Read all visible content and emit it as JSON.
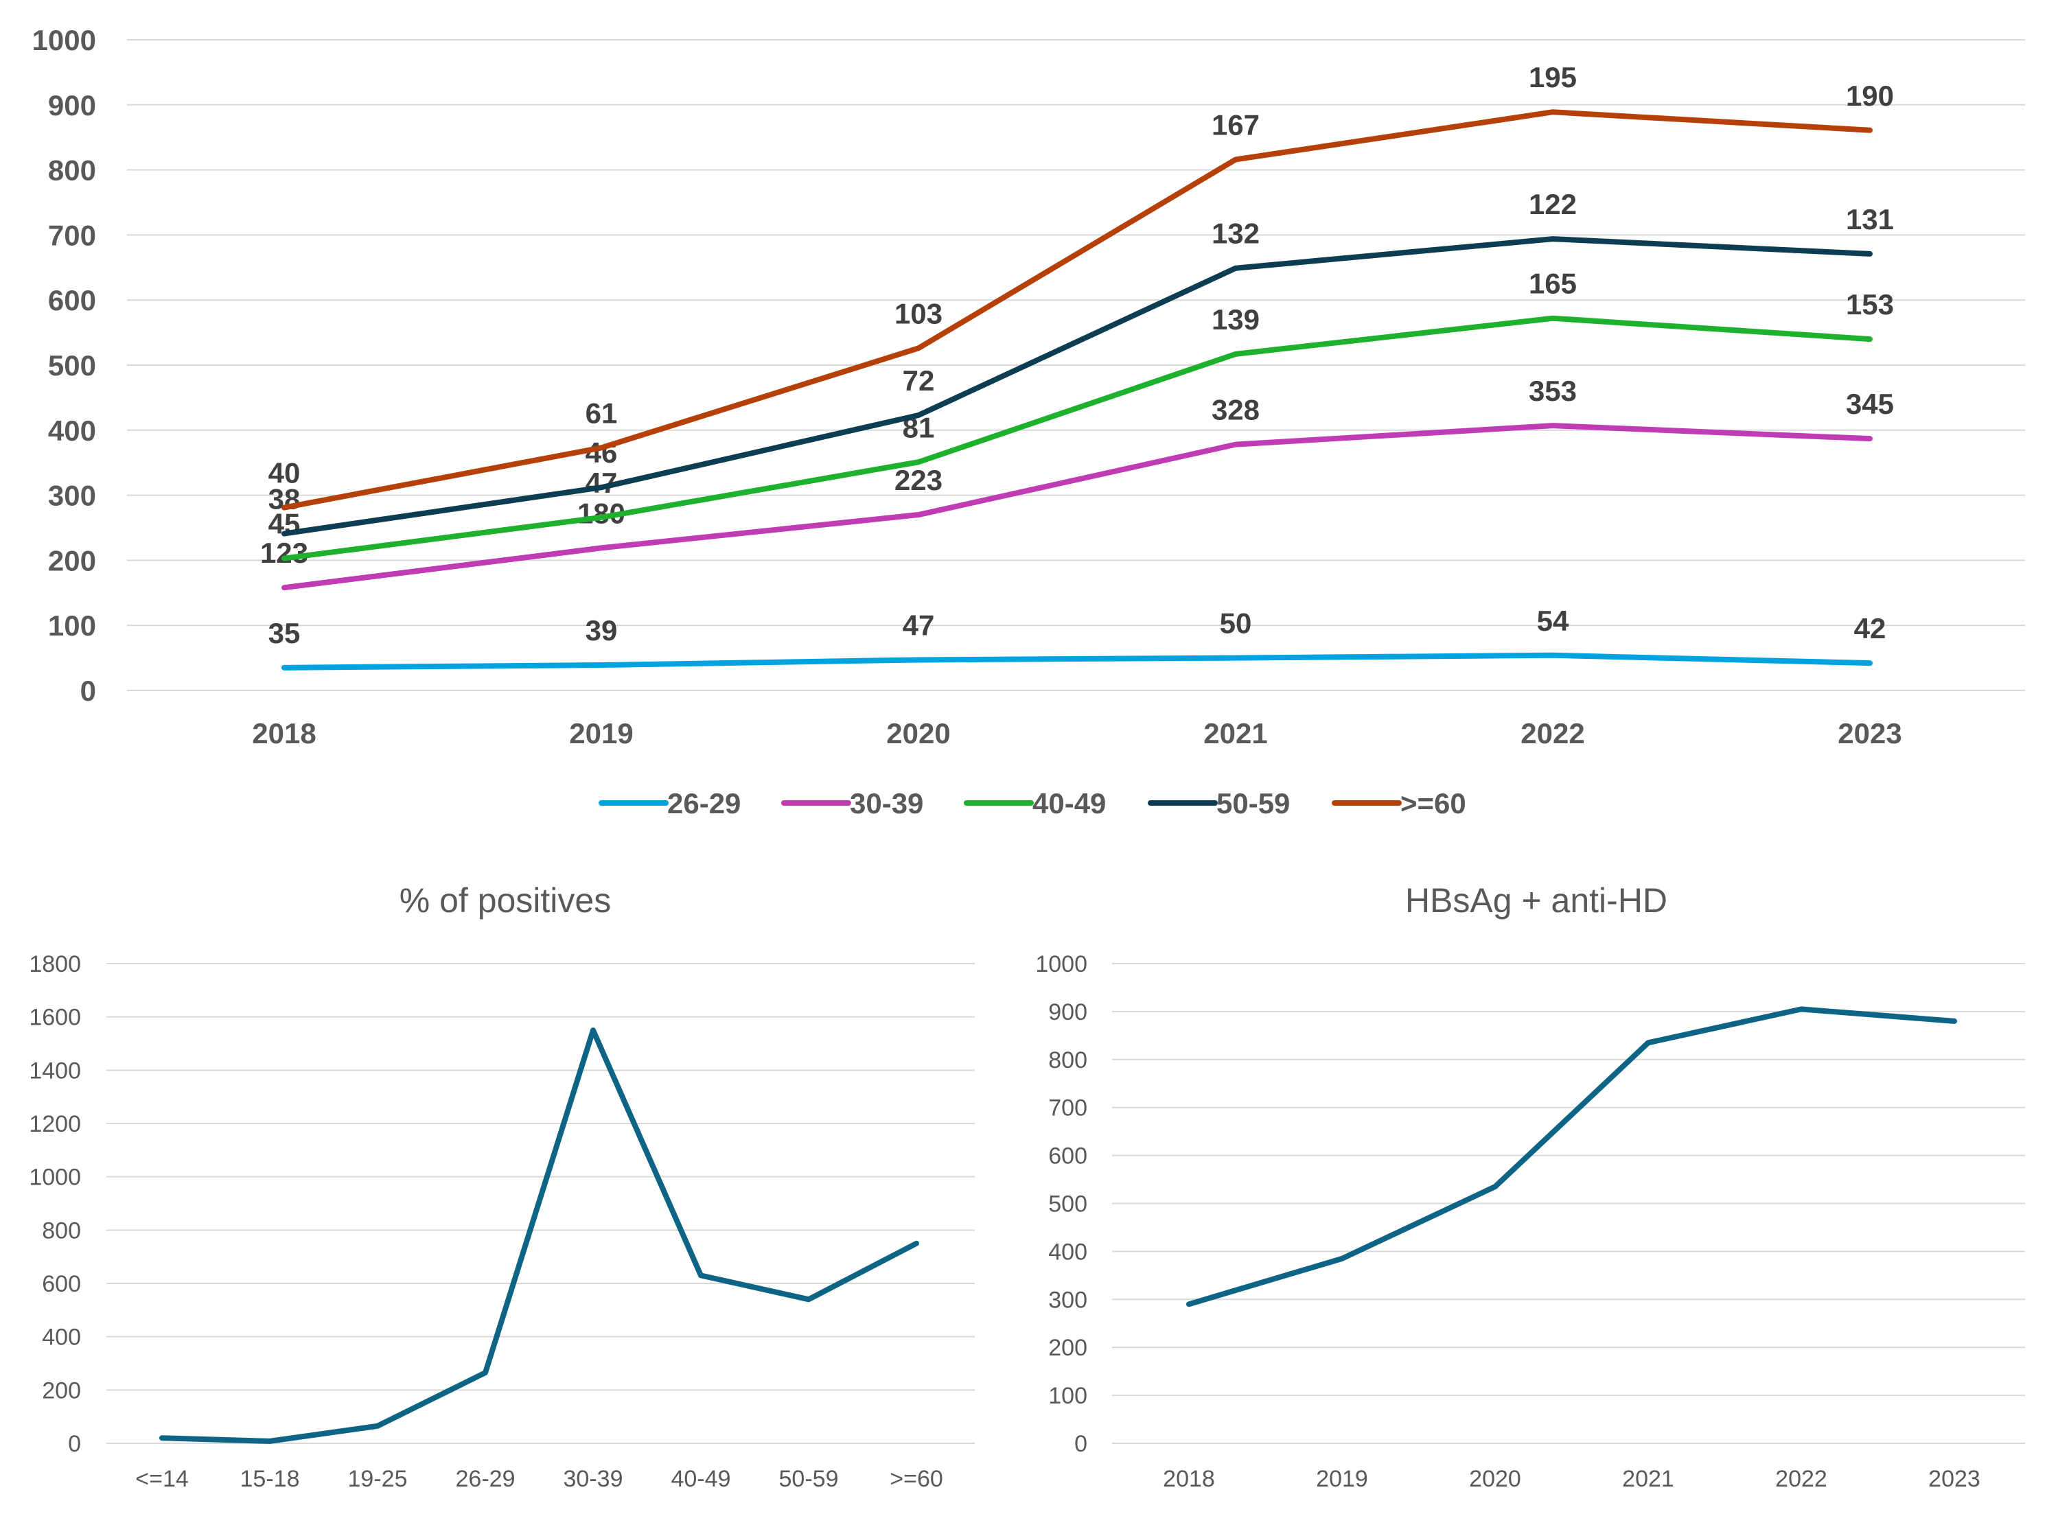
{
  "chart_data": [
    {
      "type": "line",
      "title": "",
      "xlabel": "",
      "ylabel": "",
      "ylim": [
        0,
        1000
      ],
      "yticks": [
        0,
        100,
        200,
        300,
        400,
        500,
        600,
        700,
        800,
        900,
        1000
      ],
      "categories": [
        "2018",
        "2019",
        "2020",
        "2021",
        "2022",
        "2023"
      ],
      "stacked": true,
      "legend_position": "bottom",
      "grid": true,
      "series": [
        {
          "name": "26-29",
          "color": "#00a2e0",
          "values": [
            35,
            39,
            47,
            50,
            54,
            42
          ]
        },
        {
          "name": "30-39",
          "color": "#c03cb4",
          "values": [
            123,
            180,
            223,
            328,
            353,
            345
          ]
        },
        {
          "name": "40-49",
          "color": "#1db12d",
          "values": [
            45,
            47,
            81,
            139,
            165,
            153
          ]
        },
        {
          "name": "50-59",
          "color": "#0c3d52",
          "values": [
            38,
            46,
            72,
            132,
            122,
            131
          ]
        },
        {
          "name": ">=60",
          "color": "#b54109",
          "values": [
            40,
            61,
            103,
            167,
            195,
            190
          ]
        }
      ]
    },
    {
      "type": "line",
      "title": "% of positives",
      "xlabel": "",
      "ylabel": "",
      "ylim": [
        0,
        1800
      ],
      "yticks": [
        0,
        200,
        400,
        600,
        800,
        1000,
        1200,
        1400,
        1600,
        1800
      ],
      "categories": [
        "<=14",
        "15-18",
        "19-25",
        "26-29",
        "30-39",
        "40-49",
        "50-59",
        ">=60"
      ],
      "grid": true,
      "series": [
        {
          "name": "% of positives",
          "color": "#0e6485",
          "values": [
            20,
            8,
            65,
            265,
            1550,
            630,
            540,
            750
          ]
        }
      ]
    },
    {
      "type": "line",
      "title": "HBsAg + anti-HD",
      "xlabel": "",
      "ylabel": "",
      "ylim": [
        0,
        1000
      ],
      "yticks": [
        0,
        100,
        200,
        300,
        400,
        500,
        600,
        700,
        800,
        900,
        1000
      ],
      "categories": [
        "2018",
        "2019",
        "2020",
        "2021",
        "2022",
        "2023"
      ],
      "grid": true,
      "series": [
        {
          "name": "HBsAg + anti-HD",
          "color": "#0e6485",
          "values": [
            290,
            385,
            535,
            835,
            905,
            880
          ]
        }
      ]
    }
  ]
}
